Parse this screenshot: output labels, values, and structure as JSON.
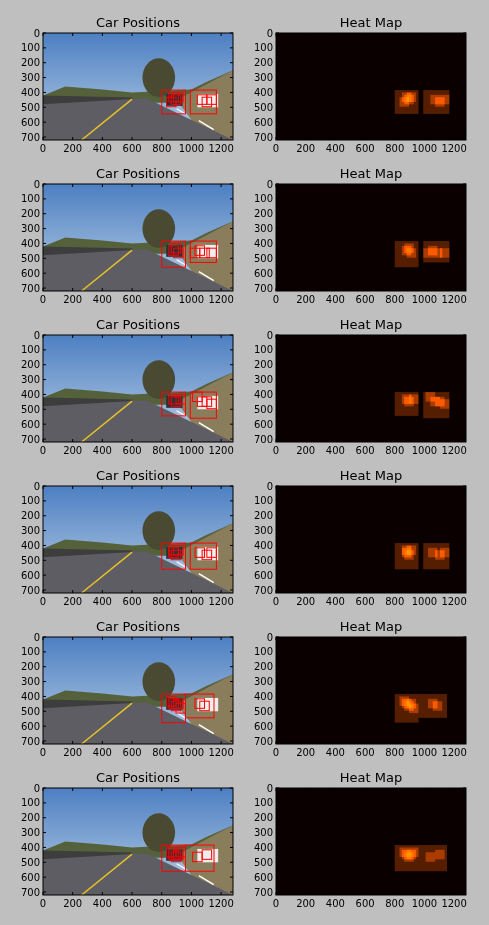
{
  "chart_data": [
    {
      "type": "image",
      "title": "Car Positions",
      "color": "#ff0000",
      "xlim": [
        0,
        1280
      ],
      "ylim": [
        720,
        0
      ],
      "xticks": [
        0,
        200,
        400,
        600,
        800,
        1000,
        1200
      ],
      "yticks": [
        0,
        100,
        200,
        300,
        400,
        500,
        600,
        700
      ],
      "boxes": [
        [
          800,
          384,
          960,
          544
        ],
        [
          992,
          384,
          1168,
          544
        ],
        [
          848,
          400,
          912,
          464
        ],
        [
          864,
          416,
          928,
          480
        ],
        [
          880,
          400,
          944,
          464
        ],
        [
          1040,
          416,
          1104,
          480
        ],
        [
          1072,
          432,
          1136,
          496
        ],
        [
          1104,
          416,
          1168,
          480
        ],
        [
          832,
          432,
          896,
          496
        ]
      ]
    },
    {
      "type": "heatmap",
      "title": "Heat Map",
      "xlim": [
        0,
        1280
      ],
      "ylim": [
        720,
        0
      ],
      "xticks": [
        0,
        200,
        400,
        600,
        800,
        1000,
        1200
      ],
      "yticks": [
        0,
        100,
        200,
        300,
        400,
        500,
        600,
        700
      ],
      "boxes": [
        [
          800,
          384,
          960,
          544
        ],
        [
          992,
          384,
          1168,
          544
        ],
        [
          848,
          400,
          912,
          464
        ],
        [
          864,
          416,
          928,
          480
        ],
        [
          880,
          400,
          944,
          464
        ],
        [
          1040,
          416,
          1104,
          480
        ],
        [
          1072,
          432,
          1136,
          496
        ],
        [
          1104,
          416,
          1168,
          480
        ],
        [
          832,
          432,
          896,
          496
        ]
      ]
    },
    {
      "type": "image",
      "title": "Car Positions",
      "color": "#ff0000",
      "xlim": [
        0,
        1280
      ],
      "ylim": [
        720,
        0
      ],
      "xticks": [
        0,
        200,
        400,
        600,
        800,
        1000,
        1200
      ],
      "yticks": [
        0,
        100,
        200,
        300,
        400,
        500,
        600,
        700
      ],
      "boxes": [
        [
          800,
          384,
          960,
          560
        ],
        [
          992,
          384,
          1168,
          528
        ],
        [
          848,
          416,
          912,
          480
        ],
        [
          864,
          400,
          928,
          464
        ],
        [
          880,
          432,
          944,
          496
        ],
        [
          1024,
          416,
          1088,
          480
        ],
        [
          1056,
          432,
          1120,
          496
        ],
        [
          1104,
          432,
          1168,
          496
        ],
        [
          992,
          432,
          1056,
          496
        ]
      ]
    },
    {
      "type": "heatmap",
      "title": "Heat Map",
      "xlim": [
        0,
        1280
      ],
      "ylim": [
        720,
        0
      ],
      "xticks": [
        0,
        200,
        400,
        600,
        800,
        1000,
        1200
      ],
      "yticks": [
        0,
        100,
        200,
        300,
        400,
        500,
        600,
        700
      ],
      "boxes": [
        [
          800,
          384,
          960,
          560
        ],
        [
          992,
          384,
          1168,
          528
        ],
        [
          848,
          416,
          912,
          480
        ],
        [
          864,
          400,
          928,
          464
        ],
        [
          880,
          432,
          944,
          496
        ],
        [
          1024,
          416,
          1088,
          480
        ],
        [
          1056,
          432,
          1120,
          496
        ],
        [
          1104,
          432,
          1168,
          496
        ],
        [
          992,
          432,
          1056,
          496
        ]
      ]
    },
    {
      "type": "image",
      "title": "Car Positions",
      "color": "#ff0000",
      "xlim": [
        0,
        1280
      ],
      "ylim": [
        720,
        0
      ],
      "xticks": [
        0,
        200,
        400,
        600,
        800,
        1000,
        1200
      ],
      "yticks": [
        0,
        100,
        200,
        300,
        400,
        500,
        600,
        700
      ],
      "boxes": [
        [
          800,
          384,
          960,
          544
        ],
        [
          992,
          384,
          1168,
          560
        ],
        [
          848,
          400,
          912,
          464
        ],
        [
          864,
          416,
          928,
          480
        ],
        [
          896,
          400,
          960,
          464
        ],
        [
          1040,
          416,
          1104,
          480
        ],
        [
          1072,
          416,
          1136,
          480
        ],
        [
          1104,
          432,
          1168,
          496
        ],
        [
          1008,
          384,
          1072,
          448
        ]
      ]
    },
    {
      "type": "heatmap",
      "title": "Heat Map",
      "xlim": [
        0,
        1280
      ],
      "ylim": [
        720,
        0
      ],
      "xticks": [
        0,
        200,
        400,
        600,
        800,
        1000,
        1200
      ],
      "yticks": [
        0,
        100,
        200,
        300,
        400,
        500,
        600,
        700
      ],
      "boxes": [
        [
          800,
          384,
          960,
          544
        ],
        [
          992,
          384,
          1168,
          560
        ],
        [
          848,
          400,
          912,
          464
        ],
        [
          864,
          416,
          928,
          480
        ],
        [
          896,
          400,
          960,
          464
        ],
        [
          1040,
          416,
          1104,
          480
        ],
        [
          1072,
          416,
          1136,
          480
        ],
        [
          1104,
          432,
          1168,
          496
        ],
        [
          1008,
          384,
          1072,
          448
        ]
      ]
    },
    {
      "type": "image",
      "title": "Car Positions",
      "color": "#ff0000",
      "xlim": [
        0,
        1280
      ],
      "ylim": [
        720,
        0
      ],
      "xticks": [
        0,
        200,
        400,
        600,
        800,
        1000,
        1200
      ],
      "yticks": [
        0,
        100,
        200,
        300,
        400,
        500,
        600,
        700
      ],
      "boxes": [
        [
          800,
          384,
          960,
          560
        ],
        [
          992,
          384,
          1168,
          560
        ],
        [
          848,
          416,
          912,
          480
        ],
        [
          864,
          432,
          928,
          496
        ],
        [
          880,
          400,
          944,
          464
        ],
        [
          848,
          400,
          912,
          464
        ],
        [
          1024,
          416,
          1088,
          480
        ],
        [
          1072,
          432,
          1136,
          496
        ],
        [
          1104,
          416,
          1168,
          480
        ]
      ]
    },
    {
      "type": "heatmap",
      "title": "Heat Map",
      "xlim": [
        0,
        1280
      ],
      "ylim": [
        720,
        0
      ],
      "xticks": [
        0,
        200,
        400,
        600,
        800,
        1000,
        1200
      ],
      "yticks": [
        0,
        100,
        200,
        300,
        400,
        500,
        600,
        700
      ],
      "boxes": [
        [
          800,
          384,
          960,
          560
        ],
        [
          992,
          384,
          1168,
          560
        ],
        [
          848,
          416,
          912,
          480
        ],
        [
          864,
          432,
          928,
          496
        ],
        [
          880,
          400,
          944,
          464
        ],
        [
          848,
          400,
          912,
          464
        ],
        [
          1024,
          416,
          1088,
          480
        ],
        [
          1072,
          432,
          1136,
          496
        ],
        [
          1104,
          416,
          1168,
          480
        ]
      ]
    },
    {
      "type": "image",
      "title": "Car Positions",
      "color": "#ff0000",
      "xlim": [
        0,
        1280
      ],
      "ylim": [
        720,
        0
      ],
      "xticks": [
        0,
        200,
        400,
        600,
        800,
        1000,
        1200
      ],
      "yticks": [
        0,
        100,
        200,
        300,
        400,
        500,
        600,
        700
      ],
      "boxes": [
        [
          800,
          384,
          960,
          576
        ],
        [
          960,
          384,
          1152,
          544
        ],
        [
          848,
          416,
          912,
          480
        ],
        [
          864,
          432,
          928,
          496
        ],
        [
          880,
          416,
          944,
          480
        ],
        [
          832,
          400,
          896,
          464
        ],
        [
          1024,
          416,
          1088,
          480
        ],
        [
          1056,
          432,
          1120,
          496
        ],
        [
          896,
          448,
          960,
          512
        ]
      ]
    },
    {
      "type": "heatmap",
      "title": "Heat Map",
      "xlim": [
        0,
        1280
      ],
      "ylim": [
        720,
        0
      ],
      "xticks": [
        0,
        200,
        400,
        600,
        800,
        1000,
        1200
      ],
      "yticks": [
        0,
        100,
        200,
        300,
        400,
        500,
        600,
        700
      ],
      "boxes": [
        [
          800,
          384,
          960,
          576
        ],
        [
          960,
          384,
          1152,
          544
        ],
        [
          848,
          416,
          912,
          480
        ],
        [
          864,
          432,
          928,
          496
        ],
        [
          880,
          416,
          944,
          480
        ],
        [
          832,
          400,
          896,
          464
        ],
        [
          1024,
          416,
          1088,
          480
        ],
        [
          1056,
          432,
          1120,
          496
        ],
        [
          896,
          448,
          960,
          512
        ]
      ]
    },
    {
      "type": "image",
      "title": "Car Positions",
      "color": "#ff0000",
      "xlim": [
        0,
        1280
      ],
      "ylim": [
        720,
        0
      ],
      "xticks": [
        0,
        200,
        400,
        600,
        800,
        1000,
        1200
      ],
      "yticks": [
        0,
        100,
        200,
        300,
        400,
        500,
        600,
        700
      ],
      "boxes": [
        [
          800,
          384,
          960,
          560
        ],
        [
          960,
          384,
          1152,
          560
        ],
        [
          848,
          416,
          912,
          480
        ],
        [
          864,
          432,
          928,
          496
        ],
        [
          880,
          416,
          944,
          480
        ],
        [
          832,
          400,
          896,
          464
        ],
        [
          1008,
          432,
          1072,
          496
        ],
        [
          1072,
          416,
          1136,
          480
        ],
        [
          896,
          400,
          960,
          464
        ]
      ]
    },
    {
      "type": "heatmap",
      "title": "Heat Map",
      "xlim": [
        0,
        1280
      ],
      "ylim": [
        720,
        0
      ],
      "xticks": [
        0,
        200,
        400,
        600,
        800,
        1000,
        1200
      ],
      "yticks": [
        0,
        100,
        200,
        300,
        400,
        500,
        600,
        700
      ],
      "boxes": [
        [
          800,
          384,
          960,
          560
        ],
        [
          960,
          384,
          1152,
          560
        ],
        [
          848,
          416,
          912,
          480
        ],
        [
          864,
          432,
          928,
          496
        ],
        [
          880,
          416,
          944,
          480
        ],
        [
          832,
          400,
          896,
          464
        ],
        [
          1008,
          432,
          1072,
          496
        ],
        [
          1072,
          416,
          1136,
          480
        ],
        [
          896,
          400,
          960,
          464
        ]
      ]
    }
  ]
}
